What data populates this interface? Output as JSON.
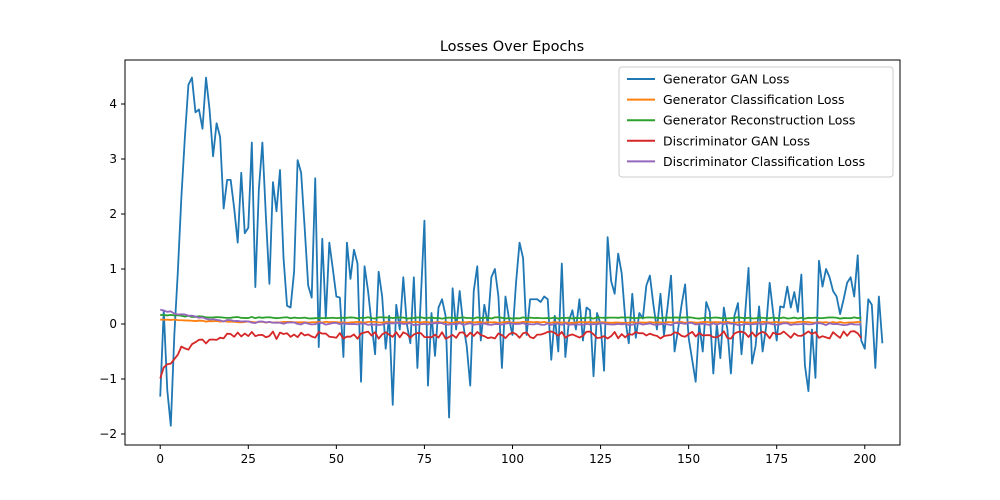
{
  "chart_data": {
    "type": "line",
    "title": "Losses Over Epochs",
    "xlabel": "",
    "ylabel": "",
    "xlim": [
      -10,
      210
    ],
    "ylim": [
      -2.2,
      4.8
    ],
    "xticks": [
      0,
      25,
      50,
      75,
      100,
      125,
      150,
      175,
      200
    ],
    "yticks": [
      -2,
      -1,
      0,
      1,
      2,
      3,
      4
    ],
    "xtick_labels": [
      "0",
      "25",
      "50",
      "75",
      "100",
      "125",
      "150",
      "175",
      "200"
    ],
    "ytick_labels": [
      "−2",
      "−1",
      "0",
      "1",
      "2",
      "3",
      "4"
    ],
    "grid": false,
    "legend": "top-right",
    "x_start": 0,
    "x_end": 199,
    "series": [
      {
        "name": "Generator GAN Loss",
        "color": "#1f77b4",
        "values": [
          -1.32,
          0.25,
          -1.2,
          -1.85,
          -0.2,
          0.95,
          2.3,
          3.4,
          4.35,
          4.48,
          3.85,
          3.9,
          3.55,
          4.48,
          3.9,
          3.05,
          3.65,
          3.4,
          2.1,
          2.62,
          2.62,
          2.1,
          1.48,
          2.75,
          1.65,
          1.75,
          3.3,
          0.67,
          2.45,
          3.3,
          1.95,
          0.73,
          2.58,
          2.05,
          2.8,
          1.2,
          0.33,
          0.3,
          0.95,
          2.98,
          2.75,
          1.75,
          0.7,
          0.48,
          2.65,
          -0.42,
          1.55,
          0.1,
          1.48,
          1.0,
          0.5,
          0.48,
          -0.6,
          1.48,
          0.82,
          1.35,
          1.1,
          -1.05,
          1.05,
          0.6,
          0.0,
          -0.55,
          0.95,
          0.5,
          -0.45,
          0.15,
          -1.47,
          0.35,
          -0.1,
          0.85,
          0.0,
          -0.35,
          0.85,
          -0.8,
          0.5,
          1.88,
          -1.12,
          0.2,
          -0.58,
          0.3,
          0.45,
          0.15,
          -1.7,
          0.65,
          -0.1,
          0.6,
          0.0,
          -0.4,
          -1.12,
          0.6,
          1.05,
          -0.3,
          0.35,
          0.0,
          0.85,
          1.0,
          0.5,
          -0.8,
          0.5,
          0.1,
          -0.2,
          0.75,
          1.48,
          1.2,
          -0.2,
          0.45,
          0.45,
          0.45,
          0.4,
          0.5,
          0.45,
          -0.65,
          0.15,
          -0.5,
          1.1,
          -0.6,
          0.05,
          0.25,
          -0.1,
          0.45,
          -0.3,
          0.3,
          0.25,
          -0.95,
          0.2,
          0.0,
          -0.85,
          1.58,
          0.78,
          0.55,
          1.28,
          0.92,
          0.1,
          -0.35,
          0.55,
          -0.25,
          0.2,
          0.1,
          0.7,
          0.88,
          0.35,
          -0.1,
          0.55,
          -0.2,
          0.3,
          0.88,
          -0.5,
          -0.1,
          0.35,
          0.72,
          -0.25,
          -0.65,
          -1.05,
          0.0,
          -0.5,
          0.4,
          0.22,
          -0.9,
          0.0,
          -0.62,
          0.3,
          -0.1,
          -0.9,
          0.15,
          0.38,
          -0.55,
          0.15,
          1.02,
          -0.72,
          -0.4,
          0.32,
          -0.5,
          -0.05,
          0.75,
          0.2,
          -0.3,
          0.32,
          0.3,
          0.68,
          0.3,
          0.58,
          0.22,
          0.9,
          -0.75,
          -1.22,
          -0.1,
          -0.98,
          1.15,
          0.68,
          1.0,
          0.85,
          0.6,
          0.5,
          0.18,
          0.45,
          0.75,
          0.85,
          0.5,
          1.25,
          -0.3,
          -0.45,
          0.45,
          0.35,
          -0.8,
          0.5,
          -0.35
        ]
      },
      {
        "name": "Generator Classification Loss",
        "pattern": "decay",
        "start": 0.09,
        "end": 0.03,
        "noise": 0.01,
        "color": "#ff7f0e"
      },
      {
        "name": "Generator Reconstruction Loss",
        "pattern": "decay",
        "start": 0.17,
        "end": 0.11,
        "noise": 0.012,
        "color": "#2ca02c"
      },
      {
        "name": "Discriminator GAN Loss",
        "pattern": "recover",
        "start": -0.95,
        "end": -0.2,
        "noise": 0.07,
        "color": "#d62728"
      },
      {
        "name": "Discriminator Classification Loss",
        "pattern": "decay",
        "start": 0.28,
        "end": 0.0,
        "noise": 0.02,
        "color": "#9467bd"
      }
    ]
  }
}
